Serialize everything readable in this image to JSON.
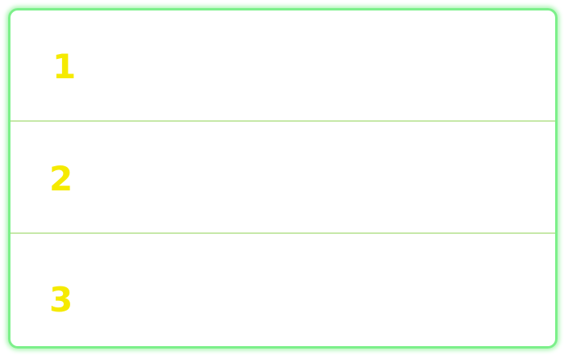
{
  "rows": [
    {
      "label": "1"
    },
    {
      "label": "2"
    },
    {
      "label": "3"
    }
  ]
}
